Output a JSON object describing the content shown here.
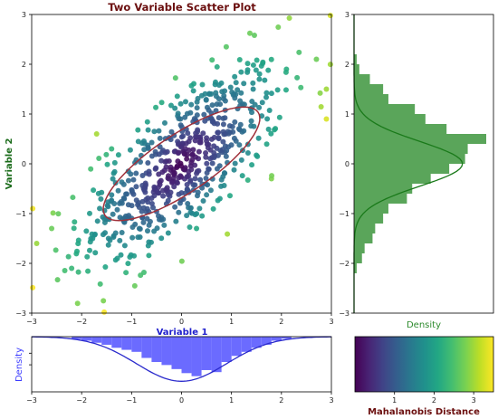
{
  "chart_data": [
    {
      "type": "scatter",
      "title": "Two Variable Scatter Plot",
      "xlabel": "Variable 1",
      "ylabel": "Variable 2",
      "xlim": [
        -3,
        3
      ],
      "ylim": [
        -3,
        3
      ],
      "xticks": [
        "−3",
        "−2",
        "−1",
        "0",
        "1",
        "2",
        "3"
      ],
      "yticks": [
        "−3",
        "−2",
        "−1",
        "0",
        "1",
        "2",
        "3"
      ],
      "colors": {
        "title": "#6b0f0f",
        "xlabel": "#1f1fcc",
        "ylabel": "#1a6b1a",
        "ellipse": "#a0303a"
      },
      "colormap": "viridis",
      "ellipse": {
        "center": [
          0,
          0
        ],
        "semi_major": 1.85,
        "semi_minor": 0.58,
        "angle_deg": 34
      },
      "n_points": 600,
      "correlation": 0.7,
      "outliers": [
        {
          "x": -2.2,
          "y": -2.1
        },
        {
          "x": -2.9,
          "y": -1.6
        },
        {
          "x": 2.7,
          "y": 2.1
        },
        {
          "x": 2.9,
          "y": 1.5
        },
        {
          "x": -3.0,
          "y": -0.9
        },
        {
          "x": 2.1,
          "y": 1.9
        },
        {
          "x": -1.4,
          "y": 0.3
        },
        {
          "x": 1.8,
          "y": -0.3
        },
        {
          "x": 0.3,
          "y": -1.3
        },
        {
          "x": -2.6,
          "y": -1.3
        },
        {
          "x": 2.9,
          "y": 0.9
        },
        {
          "x": -1.7,
          "y": 0.6
        }
      ]
    },
    {
      "type": "bar",
      "orientation": "horizontal",
      "xlabel": "Density",
      "yticks": [
        "−3",
        "−2",
        "−1",
        "0",
        "1",
        "2",
        "3"
      ],
      "bar_color": "#5aa55a",
      "curve_color": "#1a7a1a",
      "xlabel_color": "#2e8b2e",
      "bin_edges": [
        -2.2,
        -2.0,
        -1.8,
        -1.6,
        -1.4,
        -1.2,
        -1.0,
        -0.8,
        -0.6,
        -0.4,
        -0.2,
        0.0,
        0.2,
        0.4,
        0.6,
        0.8,
        1.0,
        1.2,
        1.4,
        1.6,
        1.8,
        2.0,
        2.2
      ],
      "values": [
        0.02,
        0.06,
        0.08,
        0.14,
        0.16,
        0.22,
        0.26,
        0.4,
        0.44,
        0.58,
        0.72,
        0.84,
        0.86,
        1.0,
        0.7,
        0.54,
        0.46,
        0.26,
        0.22,
        0.12,
        0.04,
        0.02
      ],
      "curve_sigma": 0.45
    },
    {
      "type": "bar",
      "orientation": "vertical-inverted",
      "ylabel": "Density",
      "xticks": [
        "−3",
        "−2",
        "−1",
        "0",
        "1",
        "2",
        "3"
      ],
      "bar_color": "#6b6bff",
      "curve_color": "#2a2acc",
      "ylabel_color": "#3b3bff",
      "bin_edges": [
        -2.2,
        -2.0,
        -1.8,
        -1.6,
        -1.4,
        -1.2,
        -1.0,
        -0.8,
        -0.6,
        -0.4,
        -0.2,
        0.0,
        0.2,
        0.4,
        0.6,
        0.8,
        1.0,
        1.2,
        1.4,
        1.6,
        1.8,
        2.0,
        2.2
      ],
      "values": [
        0.05,
        0.08,
        0.12,
        0.16,
        0.22,
        0.26,
        0.3,
        0.42,
        0.5,
        0.56,
        0.64,
        0.72,
        0.78,
        0.66,
        0.7,
        0.5,
        0.38,
        0.3,
        0.22,
        0.16,
        0.08,
        0.04
      ],
      "curve_sigma": 0.9
    },
    {
      "type": "heatmap",
      "colormap": "viridis",
      "xlabel": "Mahalanobis Distance",
      "xlabel_color": "#6b0f0f",
      "range": [
        0,
        3.5
      ],
      "ticks": [
        "1",
        "2",
        "3"
      ]
    }
  ]
}
